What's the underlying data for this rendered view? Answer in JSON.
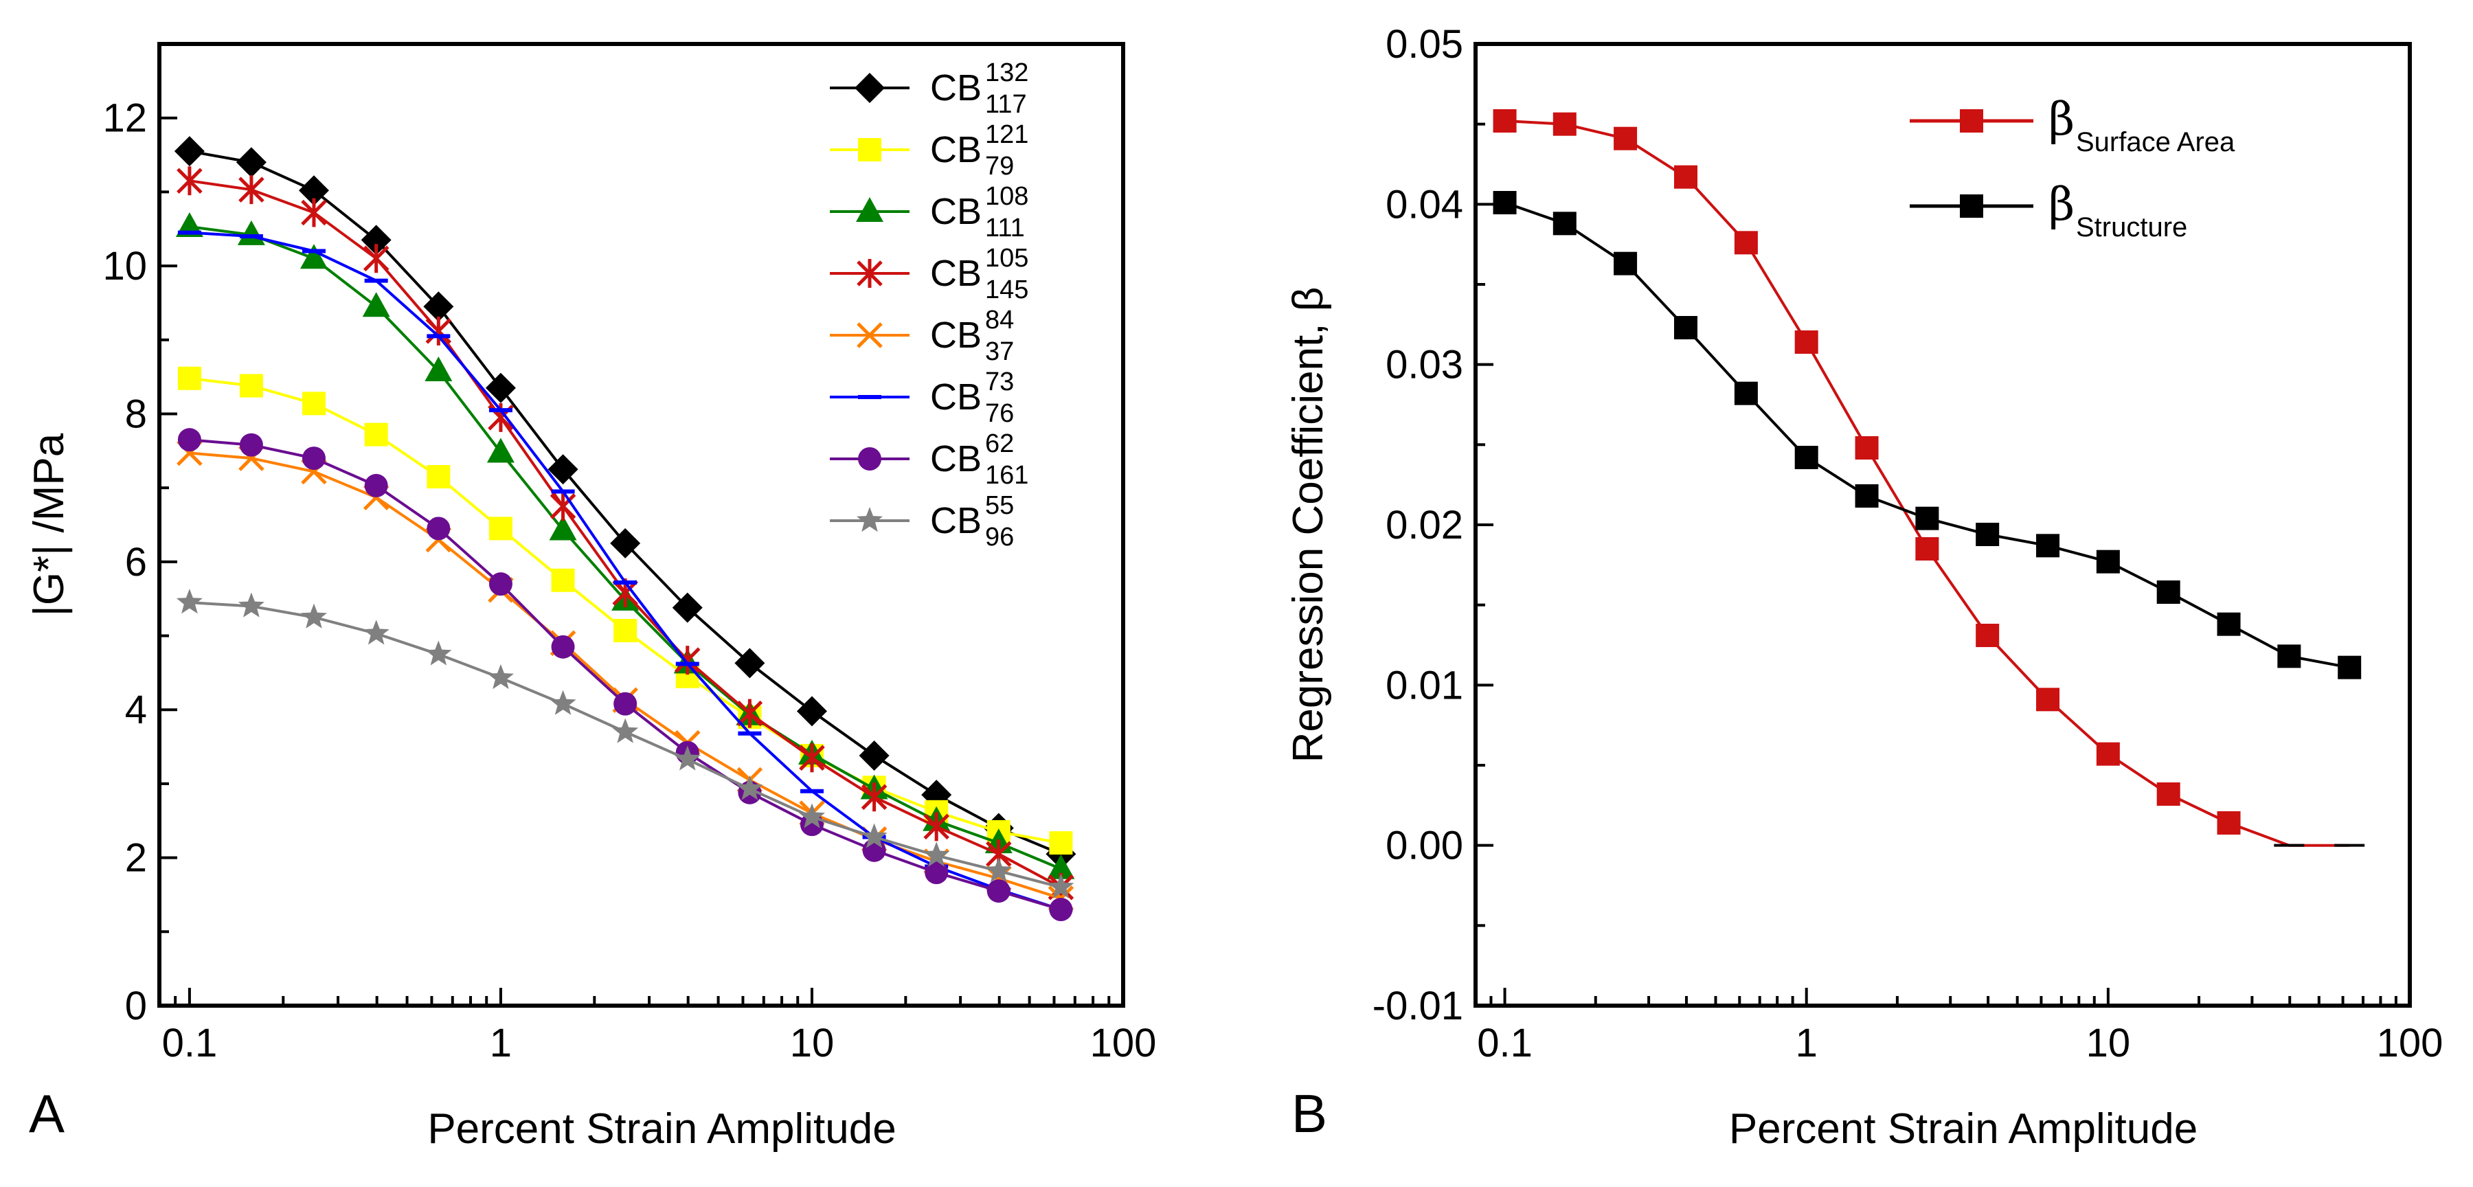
{
  "chart_data": [
    {
      "type": "line",
      "panel_label": "A",
      "xlabel": "Percent Strain Amplitude",
      "ylabel": "|G*| /MPa",
      "xscale": "log",
      "xlim": [
        0.08,
        100
      ],
      "ylim": [
        0,
        13
      ],
      "xticks": [
        0.1,
        1,
        10,
        100
      ],
      "xtick_labels": [
        "0.1",
        "1",
        "10",
        "100"
      ],
      "yticks": [
        0,
        2,
        4,
        6,
        8,
        10,
        12
      ],
      "ytick_labels": [
        "0",
        "2",
        "4",
        "6",
        "8",
        "10",
        "12"
      ],
      "legend_position": "top-right",
      "x": [
        0.1,
        0.158,
        0.251,
        0.398,
        0.631,
        1.0,
        1.585,
        2.512,
        3.981,
        6.31,
        10.0,
        15.85,
        25.12,
        39.81,
        63.1
      ],
      "series": [
        {
          "name": "CB",
          "sup": "132",
          "sub": "117",
          "color": "#000000",
          "marker": "diamond",
          "values": [
            11.55,
            11.4,
            11.02,
            10.35,
            9.45,
            8.35,
            7.25,
            6.25,
            5.38,
            4.63,
            3.98,
            3.38,
            2.85,
            2.4,
            2.05
          ]
        },
        {
          "name": "CB",
          "sup": "121",
          "sub": "79",
          "color": "#ffff00",
          "marker": "square",
          "values": [
            8.48,
            8.38,
            8.14,
            7.72,
            7.15,
            6.45,
            5.75,
            5.07,
            4.45,
            3.9,
            3.38,
            2.95,
            2.62,
            2.35,
            2.2
          ]
        },
        {
          "name": "CB",
          "sup": "108",
          "sub": "111",
          "color": "#008000",
          "marker": "triangle",
          "values": [
            10.53,
            10.42,
            10.1,
            9.45,
            8.58,
            7.48,
            6.43,
            5.48,
            4.63,
            3.93,
            3.4,
            2.93,
            2.5,
            2.2,
            1.85
          ]
        },
        {
          "name": "CB",
          "sup": "105",
          "sub": "145",
          "color": "#cc1111",
          "marker": "asterisk",
          "values": [
            11.15,
            11.03,
            10.72,
            10.1,
            9.12,
            7.95,
            6.75,
            5.58,
            4.67,
            3.95,
            3.35,
            2.82,
            2.42,
            2.05,
            1.6
          ]
        },
        {
          "name": "CB",
          "sup": "84",
          "sub": "37",
          "color": "#ff8000",
          "marker": "x",
          "values": [
            7.47,
            7.4,
            7.22,
            6.87,
            6.3,
            5.62,
            4.9,
            4.13,
            3.55,
            3.05,
            2.6,
            2.25,
            1.95,
            1.72,
            1.45
          ]
        },
        {
          "name": "CB",
          "sup": "73",
          "sub": "76",
          "color": "#0000ff",
          "marker": "dash",
          "values": [
            10.45,
            10.4,
            10.2,
            9.8,
            9.05,
            8.05,
            6.95,
            5.72,
            4.62,
            3.68,
            2.9,
            2.28,
            1.88,
            1.57,
            1.3
          ]
        },
        {
          "name": "CB",
          "sup": "62",
          "sub": "161",
          "color": "#6a0d91",
          "marker": "circle",
          "values": [
            7.65,
            7.58,
            7.4,
            7.03,
            6.45,
            5.7,
            4.85,
            4.08,
            3.42,
            2.88,
            2.45,
            2.1,
            1.8,
            1.55,
            1.3
          ]
        },
        {
          "name": "CB",
          "sup": "55",
          "sub": "96",
          "color": "#808080",
          "marker": "star",
          "values": [
            5.45,
            5.4,
            5.25,
            5.03,
            4.75,
            4.43,
            4.08,
            3.7,
            3.33,
            2.93,
            2.55,
            2.28,
            2.03,
            1.82,
            1.6
          ]
        }
      ]
    },
    {
      "type": "line",
      "panel_label": "B",
      "xlabel": "Percent Strain Amplitude",
      "ylabel": "Regression Coefficient, β",
      "xscale": "log",
      "xlim": [
        0.08,
        100
      ],
      "ylim": [
        -0.01,
        0.05
      ],
      "xticks": [
        0.1,
        1,
        10,
        100
      ],
      "xtick_labels": [
        "0.1",
        "1",
        "10",
        "100"
      ],
      "yticks": [
        -0.01,
        0.0,
        0.01,
        0.02,
        0.03,
        0.04,
        0.05
      ],
      "ytick_labels": [
        "-0.01",
        "0.00",
        "0.01",
        "0.02",
        "0.03",
        "0.04",
        "0.05"
      ],
      "legend_position": "top-right",
      "x": [
        0.1,
        0.158,
        0.251,
        0.398,
        0.631,
        1.0,
        1.585,
        2.512,
        3.981,
        6.31,
        10.0,
        15.85,
        25.12,
        39.81,
        63.1
      ],
      "series": [
        {
          "name": "β",
          "sub": "Surface Area",
          "color": "#cc1111",
          "marker": "square",
          "values": [
            0.0452,
            0.045,
            0.0441,
            0.0417,
            0.0376,
            0.0314,
            0.0248,
            0.0185,
            0.0131,
            0.0091,
            0.0057,
            0.0032,
            0.0014,
            0.0,
            0.0
          ]
        },
        {
          "name": "β",
          "sub": "Structure",
          "color": "#000000",
          "marker": "square",
          "values": [
            0.0401,
            0.0388,
            0.0363,
            0.0323,
            0.0282,
            0.0242,
            0.0218,
            0.0204,
            0.0194,
            0.0187,
            0.0177,
            0.0158,
            0.0138,
            0.0118,
            0.0111
          ]
        }
      ]
    }
  ]
}
